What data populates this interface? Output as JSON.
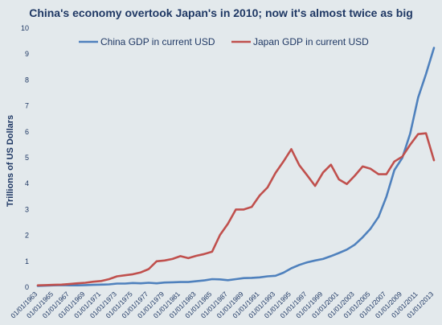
{
  "chart_data": {
    "type": "line",
    "title": "China's economy overtook Japan's in 2010; now it's almost twice as big",
    "ylabel": "Trillions of US Dollars",
    "xlabel": "",
    "ylim": [
      0,
      10
    ],
    "yticks": [
      "0",
      "1",
      "2",
      "3",
      "4",
      "5",
      "6",
      "7",
      "8",
      "9",
      "10"
    ],
    "grid": false,
    "legend_position": "top",
    "x": [
      "01/01/1963",
      "01/01/1964",
      "01/01/1965",
      "01/01/1966",
      "01/01/1967",
      "01/01/1968",
      "01/01/1969",
      "01/01/1970",
      "01/01/1971",
      "01/01/1972",
      "01/01/1973",
      "01/01/1974",
      "01/01/1975",
      "01/01/1976",
      "01/01/1977",
      "01/01/1978",
      "01/01/1979",
      "01/01/1980",
      "01/01/1981",
      "01/01/1982",
      "01/01/1983",
      "01/01/1984",
      "01/01/1985",
      "01/01/1986",
      "01/01/1987",
      "01/01/1988",
      "01/01/1989",
      "01/01/1990",
      "01/01/1991",
      "01/01/1992",
      "01/01/1993",
      "01/01/1994",
      "01/01/1995",
      "01/01/1996",
      "01/01/1997",
      "01/01/1998",
      "01/01/1999",
      "01/01/2000",
      "01/01/2001",
      "01/01/2002",
      "01/01/2003",
      "01/01/2004",
      "01/01/2005",
      "01/01/2006",
      "01/01/2007",
      "01/01/2008",
      "01/01/2009",
      "01/01/2010",
      "01/01/2011",
      "01/01/2012",
      "01/01/2013"
    ],
    "xticks": [
      "01/01/1963",
      "01/01/1965",
      "01/01/1967",
      "01/01/1969",
      "01/01/1971",
      "01/01/1973",
      "01/01/1975",
      "01/01/1977",
      "01/01/1979",
      "01/01/1981",
      "01/01/1983",
      "01/01/1985",
      "01/01/1987",
      "01/01/1989",
      "01/01/1991",
      "01/01/1993",
      "01/01/1995",
      "01/01/1997",
      "01/01/1999",
      "01/01/2001",
      "01/01/2003",
      "01/01/2005",
      "01/01/2007",
      "01/01/2009",
      "01/01/2011",
      "01/01/2013"
    ],
    "series": [
      {
        "name": "China GDP in current USD",
        "color": "#4f81bd",
        "values": [
          0.05,
          0.06,
          0.07,
          0.08,
          0.07,
          0.07,
          0.08,
          0.09,
          0.1,
          0.11,
          0.14,
          0.14,
          0.16,
          0.15,
          0.17,
          0.15,
          0.18,
          0.19,
          0.2,
          0.2,
          0.23,
          0.26,
          0.31,
          0.3,
          0.27,
          0.31,
          0.35,
          0.36,
          0.38,
          0.42,
          0.44,
          0.56,
          0.73,
          0.86,
          0.96,
          1.03,
          1.09,
          1.2,
          1.32,
          1.45,
          1.64,
          1.93,
          2.26,
          2.71,
          3.49,
          4.52,
          4.99,
          5.93,
          7.32,
          8.23,
          9.24
        ]
      },
      {
        "name": "Japan GDP in current USD",
        "color": "#c0504d",
        "values": [
          0.07,
          0.08,
          0.09,
          0.1,
          0.12,
          0.15,
          0.17,
          0.21,
          0.24,
          0.31,
          0.42,
          0.46,
          0.5,
          0.57,
          0.7,
          1.0,
          1.03,
          1.09,
          1.2,
          1.12,
          1.21,
          1.28,
          1.37,
          2.02,
          2.45,
          3.0,
          3.0,
          3.1,
          3.54,
          3.85,
          4.41,
          4.85,
          5.33,
          4.71,
          4.32,
          3.91,
          4.43,
          4.73,
          4.16,
          3.98,
          4.3,
          4.66,
          4.57,
          4.36,
          4.36,
          4.85,
          5.04,
          5.5,
          5.91,
          5.94,
          4.9
        ]
      }
    ]
  }
}
